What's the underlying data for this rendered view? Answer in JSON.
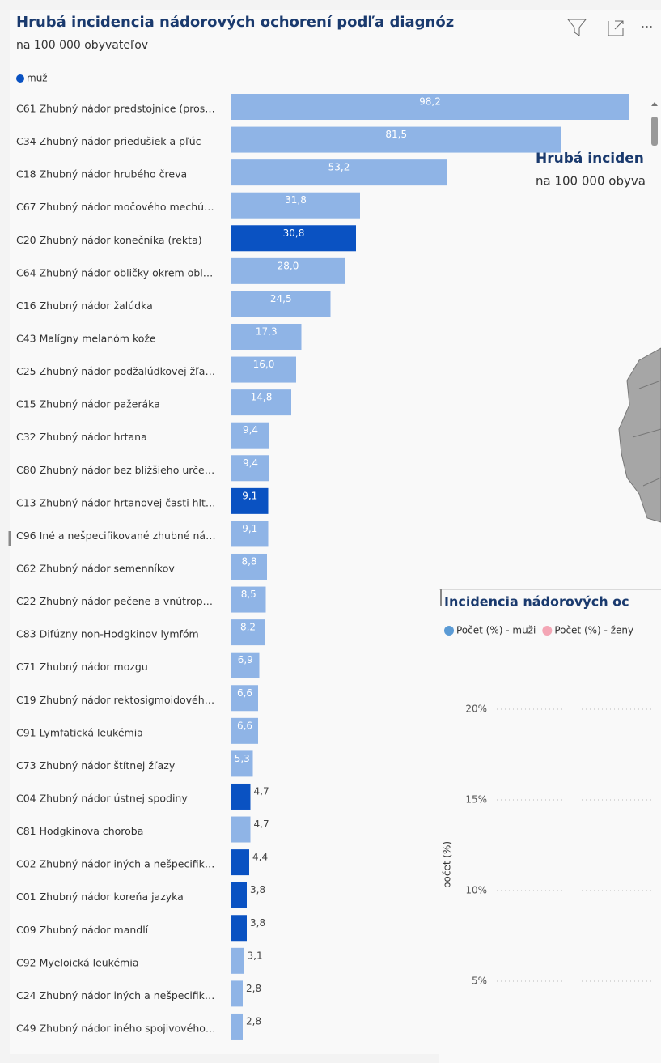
{
  "chart_data": [
    {
      "type": "bar",
      "title": "Hrubá incidencia nádorových ochorení podľa diagnóz",
      "subtitle": "na 100 000 obyvateľov",
      "legend": [
        {
          "name": "muž",
          "color": "#0a52c2"
        }
      ],
      "categories": [
        "C61 Zhubný nádor predstojnice (pros…",
        "C34 Zhubný nádor priedušiek a pľúc",
        "C18 Zhubný nádor hrubého čreva",
        "C67 Zhubný nádor močového mechú…",
        "C20 Zhubný nádor konečníka (rekta)",
        "C64 Zhubný nádor obličky okrem obl…",
        "C16 Zhubný nádor žalúdka",
        "C43 Malígny melanóm kože",
        "C25 Zhubný nádor podžalúdkovej žľa…",
        "C15 Zhubný nádor pažeráka",
        "C32 Zhubný nádor hrtana",
        "C80 Zhubný nádor bez bližšieho urče…",
        "C13 Zhubný nádor hrtanovej časti hlt…",
        "C96 Iné a nešpecifikované zhubné ná…",
        "C62 Zhubný nádor semenníkov",
        "C22 Zhubný nádor pečene a vnútrop…",
        "C83 Difúzny non-Hodgkinov lymfóm",
        "C71 Zhubný nádor mozgu",
        "C19 Zhubný nádor rektosigmoidovéh…",
        "C91 Lymfatická leukémia",
        "C73 Zhubný nádor štítnej žľazy",
        "C04 Zhubný nádor ústnej spodiny",
        "C81 Hodgkinova choroba",
        "C02 Zhubný nádor iných a nešpecifik…",
        "C01 Zhubný nádor koreňa jazyka",
        "C09 Zhubný nádor mandlí",
        "C92 Myeloická leukémia",
        "C24 Zhubný nádor iných a nešpecifik…",
        "C49 Zhubný nádor iného spojivového…"
      ],
      "values": [
        98.2,
        81.5,
        53.2,
        31.8,
        30.8,
        28.0,
        24.5,
        17.3,
        16.0,
        14.8,
        9.4,
        9.4,
        9.1,
        9.1,
        8.8,
        8.5,
        8.2,
        6.9,
        6.6,
        6.6,
        5.3,
        4.7,
        4.7,
        4.4,
        3.8,
        3.8,
        3.1,
        2.8,
        2.8
      ],
      "value_labels": [
        "98,2",
        "81,5",
        "53,2",
        "31,8",
        "30,8",
        "28,0",
        "24,5",
        "17,3",
        "16,0",
        "14,8",
        "9,4",
        "9,4",
        "9,1",
        "9,1",
        "8,8",
        "8,5",
        "8,2",
        "6,9",
        "6,6",
        "6,6",
        "5,3",
        "4,7",
        "4,7",
        "4,4",
        "3,8",
        "3,8",
        "3,1",
        "2,8",
        "2,8"
      ],
      "colors": [
        "#8fb4e6",
        "#8fb4e6",
        "#8fb4e6",
        "#8fb4e6",
        "#0a52c2",
        "#8fb4e6",
        "#8fb4e6",
        "#8fb4e6",
        "#8fb4e6",
        "#8fb4e6",
        "#8fb4e6",
        "#8fb4e6",
        "#0a52c2",
        "#8fb4e6",
        "#8fb4e6",
        "#8fb4e6",
        "#8fb4e6",
        "#8fb4e6",
        "#8fb4e6",
        "#8fb4e6",
        "#8fb4e6",
        "#0a52c2",
        "#8fb4e6",
        "#0a52c2",
        "#0a52c2",
        "#0a52c2",
        "#8fb4e6",
        "#8fb4e6",
        "#8fb4e6"
      ]
    },
    {
      "type": "line",
      "title": "Incidencia nádorových oc",
      "ylabel": "počet (%)",
      "series": [
        {
          "name": "Počet (%) - muži",
          "color": "#5b9bd5",
          "values": []
        },
        {
          "name": "Počet (%) - ženy",
          "color": "#f4a6b5",
          "values": []
        }
      ],
      "ylim": [
        0,
        20
      ],
      "yticks": [
        {
          "value": 20,
          "label": "20%"
        },
        {
          "value": 15,
          "label": "15%"
        },
        {
          "value": 10,
          "label": "10%"
        },
        {
          "value": 5,
          "label": "5%"
        }
      ],
      "grid": true
    }
  ],
  "map_visual": {
    "title": "Hrubá inciden",
    "subtitle": "na 100 000 obyva"
  }
}
